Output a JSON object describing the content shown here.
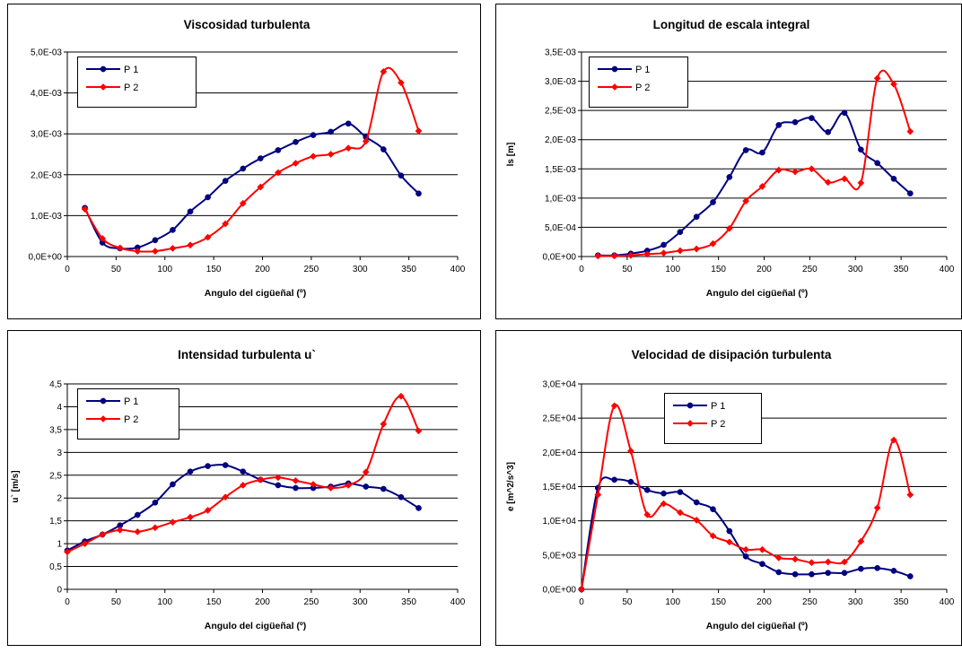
{
  "chart_data": [
    {
      "type": "line",
      "title": "Viscosidad turbulenta",
      "xlabel": "Angulo del cigüeñal (º)",
      "ylabel": "",
      "xlim": [
        0,
        400
      ],
      "ylim": [
        0,
        0.005
      ],
      "xticks": [
        0,
        50,
        100,
        150,
        200,
        250,
        300,
        350,
        400
      ],
      "xtick_labels": [
        "0",
        "50",
        "100",
        "150",
        "200",
        "250",
        "300",
        "350",
        "400"
      ],
      "yticks": [
        0,
        0.001,
        0.002,
        0.003,
        0.004,
        0.005
      ],
      "ytick_labels": [
        "0,0E+00",
        "1,0E-03",
        "2,0E-03",
        "3,0E-03",
        "4,0E-03",
        "5,0E-03"
      ],
      "grid": "horizontal",
      "legend_position": "top-left",
      "series": [
        {
          "name": "P 1",
          "color": "#000080",
          "marker": "circle",
          "x": [
            18,
            36,
            54,
            72,
            90,
            108,
            126,
            144,
            162,
            180,
            198,
            216,
            234,
            252,
            270,
            288,
            306,
            324,
            342,
            360
          ],
          "y": [
            0.00119,
            0.00034,
            0.0002,
            0.00022,
            0.0004,
            0.00065,
            0.0011,
            0.00145,
            0.00185,
            0.00215,
            0.0024,
            0.0026,
            0.0028,
            0.00297,
            0.00305,
            0.00325,
            0.00292,
            0.00262,
            0.00198,
            0.00154
          ]
        },
        {
          "name": "P 2",
          "color": "#FF0000",
          "marker": "diamond",
          "x": [
            18,
            36,
            54,
            72,
            90,
            108,
            126,
            144,
            162,
            180,
            198,
            216,
            234,
            252,
            270,
            288,
            306,
            324,
            342,
            360
          ],
          "y": [
            0.00116,
            0.00044,
            0.00021,
            0.00013,
            0.00013,
            0.0002,
            0.00028,
            0.00047,
            0.0008,
            0.0013,
            0.0017,
            0.00205,
            0.00228,
            0.00245,
            0.0025,
            0.00265,
            0.00282,
            0.00452,
            0.00425,
            0.00307
          ]
        }
      ]
    },
    {
      "type": "line",
      "title": "Longitud de escala integral",
      "xlabel": "Angulo del cigüeñal (º)",
      "ylabel": "ls [m]",
      "xlim": [
        0,
        400
      ],
      "ylim": [
        0,
        0.0035
      ],
      "xticks": [
        0,
        50,
        100,
        150,
        200,
        250,
        300,
        350,
        400
      ],
      "xtick_labels": [
        "0",
        "50",
        "100",
        "150",
        "200",
        "250",
        "300",
        "350",
        "400"
      ],
      "yticks": [
        0,
        0.0005,
        0.001,
        0.0015,
        0.002,
        0.0025,
        0.003,
        0.0035
      ],
      "ytick_labels": [
        "0,0E+00",
        "5,0E-04",
        "1,0E-03",
        "1,5E-03",
        "2,0E-03",
        "2,5E-03",
        "3,0E-03",
        "3,5E-03"
      ],
      "grid": "horizontal",
      "legend_position": "top-left",
      "series": [
        {
          "name": "P 1",
          "color": "#000080",
          "marker": "circle",
          "x": [
            18,
            36,
            54,
            72,
            90,
            108,
            126,
            144,
            162,
            180,
            198,
            216,
            234,
            252,
            270,
            288,
            306,
            324,
            342,
            360
          ],
          "y": [
            2e-05,
            2e-05,
            5e-05,
            0.0001,
            0.0002,
            0.00042,
            0.00068,
            0.00093,
            0.00136,
            0.00182,
            0.00178,
            0.00225,
            0.0023,
            0.00237,
            0.00213,
            0.00246,
            0.00183,
            0.0016,
            0.00133,
            0.00108
          ]
        },
        {
          "name": "P 2",
          "color": "#FF0000",
          "marker": "diamond",
          "x": [
            18,
            36,
            54,
            72,
            90,
            108,
            126,
            144,
            162,
            180,
            198,
            216,
            234,
            252,
            270,
            288,
            306,
            324,
            342,
            360
          ],
          "y": [
            1e-05,
            1e-05,
            2e-05,
            4e-05,
            6e-05,
            0.0001,
            0.00013,
            0.00022,
            0.00048,
            0.00095,
            0.0012,
            0.00148,
            0.00145,
            0.0015,
            0.00127,
            0.00133,
            0.00126,
            0.00305,
            0.00295,
            0.00214
          ]
        }
      ]
    },
    {
      "type": "line",
      "title": "Intensidad turbulenta u`",
      "xlabel": "Angulo del cigüeñal (º)",
      "ylabel": "u` [m/s]",
      "xlim": [
        0,
        400
      ],
      "ylim": [
        0,
        4.5
      ],
      "xticks": [
        0,
        50,
        100,
        150,
        200,
        250,
        300,
        350,
        400
      ],
      "xtick_labels": [
        "0",
        "50",
        "100",
        "150",
        "200",
        "250",
        "300",
        "350",
        "400"
      ],
      "yticks": [
        0,
        0.5,
        1,
        1.5,
        2,
        2.5,
        3,
        3.5,
        4,
        4.5
      ],
      "ytick_labels": [
        "0",
        "0,5",
        "1",
        "1,5",
        "2",
        "2,5",
        "3",
        "3,5",
        "4",
        "4,5"
      ],
      "grid": "horizontal",
      "legend_position": "top-left",
      "series": [
        {
          "name": "P 1",
          "color": "#000080",
          "marker": "circle",
          "x": [
            0,
            18,
            36,
            54,
            72,
            90,
            108,
            126,
            144,
            162,
            180,
            198,
            216,
            234,
            252,
            270,
            288,
            306,
            324,
            342,
            360
          ],
          "y": [
            0.85,
            1.05,
            1.2,
            1.4,
            1.63,
            1.9,
            2.3,
            2.58,
            2.7,
            2.72,
            2.58,
            2.4,
            2.28,
            2.22,
            2.22,
            2.25,
            2.32,
            2.25,
            2.2,
            2.02,
            1.78
          ]
        },
        {
          "name": "P 2",
          "color": "#FF0000",
          "marker": "diamond",
          "x": [
            0,
            18,
            36,
            54,
            72,
            90,
            108,
            126,
            144,
            162,
            180,
            198,
            216,
            234,
            252,
            270,
            288,
            306,
            324,
            342,
            360
          ],
          "y": [
            0.82,
            1.0,
            1.2,
            1.3,
            1.26,
            1.35,
            1.47,
            1.58,
            1.73,
            2.02,
            2.28,
            2.4,
            2.45,
            2.38,
            2.3,
            2.22,
            2.28,
            2.57,
            3.62,
            4.23,
            3.47
          ]
        }
      ]
    },
    {
      "type": "line",
      "title": "Velocidad de disipación turbulenta",
      "xlabel": "Angulo del cigüeñal (º)",
      "ylabel": "e [m^2/s^3]",
      "xlim": [
        0,
        400
      ],
      "ylim": [
        0,
        30000
      ],
      "xticks": [
        0,
        50,
        100,
        150,
        200,
        250,
        300,
        350,
        400
      ],
      "xtick_labels": [
        "0",
        "50",
        "100",
        "150",
        "200",
        "250",
        "300",
        "350",
        "400"
      ],
      "yticks": [
        0,
        5000,
        10000,
        15000,
        20000,
        25000,
        30000
      ],
      "ytick_labels": [
        "0,0E+00",
        "5,0E+03",
        "1,0E+04",
        "1,5E+04",
        "2,0E+04",
        "2,5E+04",
        "3,0E+04"
      ],
      "grid": "horizontal",
      "legend_position": "top-left",
      "series": [
        {
          "name": "P 1",
          "color": "#000080",
          "marker": "circle",
          "x": [
            0,
            18,
            36,
            54,
            72,
            90,
            108,
            126,
            144,
            162,
            180,
            198,
            216,
            234,
            252,
            270,
            288,
            306,
            324,
            342,
            360
          ],
          "y": [
            0,
            14800,
            16000,
            15700,
            14500,
            14000,
            14200,
            12700,
            11700,
            8500,
            4800,
            3700,
            2500,
            2200,
            2200,
            2400,
            2400,
            3000,
            3100,
            2700,
            1900
          ]
        },
        {
          "name": "P 2",
          "color": "#FF0000",
          "marker": "diamond",
          "x": [
            0,
            18,
            36,
            54,
            72,
            90,
            108,
            126,
            144,
            162,
            180,
            198,
            216,
            234,
            252,
            270,
            288,
            306,
            324,
            342,
            360
          ],
          "y": [
            0,
            13800,
            26800,
            20200,
            10900,
            12500,
            11200,
            10100,
            7800,
            6900,
            5800,
            5800,
            4600,
            4400,
            3900,
            4000,
            4000,
            7000,
            11900,
            21800,
            13800
          ]
        }
      ]
    }
  ]
}
